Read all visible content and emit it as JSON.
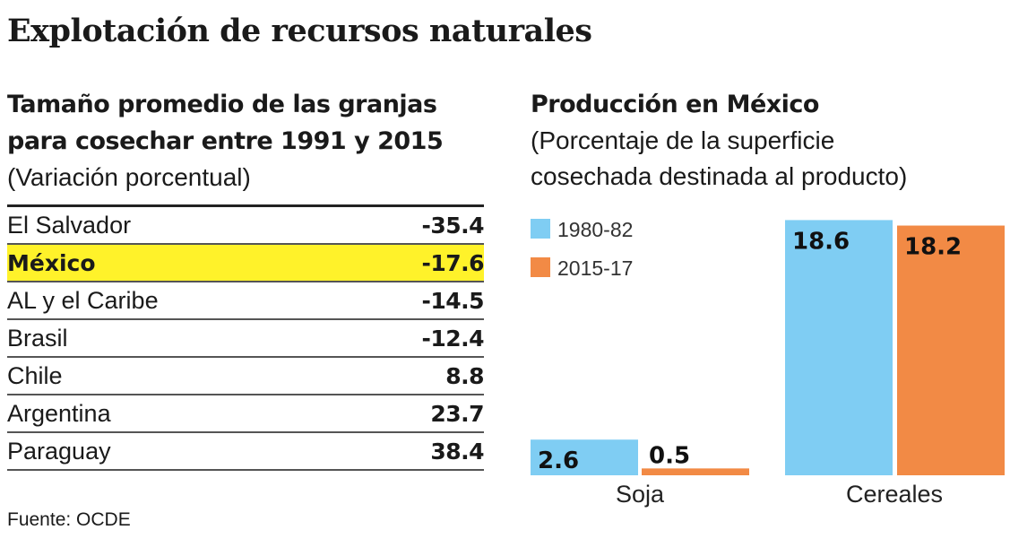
{
  "title": "Explotación de recursos naturales",
  "left": {
    "title_lines": [
      "Tamaño promedio de las granjas",
      "para cosechar entre 1991 y 2015"
    ],
    "subtitle": "(Variación porcentual)",
    "rows": [
      {
        "name": "El Salvador",
        "value": "-35.4",
        "highlight": false
      },
      {
        "name": "México",
        "value": "-17.6",
        "highlight": true
      },
      {
        "name": "AL y el Caribe",
        "value": "-14.5",
        "highlight": false
      },
      {
        "name": "Brasil",
        "value": "-12.4",
        "highlight": false
      },
      {
        "name": "Chile",
        "value": "8.8",
        "highlight": false
      },
      {
        "name": "Argentina",
        "value": "23.7",
        "highlight": false
      },
      {
        "name": "Paraguay",
        "value": "38.4",
        "highlight": false
      }
    ],
    "highlight_color": "#fff22a"
  },
  "source": "Fuente: OCDE",
  "chart_data": {
    "type": "bar",
    "title": "Producción en México",
    "subtitle_lines": [
      "(Porcentaje de la superficie",
      "cosechada destinada al producto)"
    ],
    "categories": [
      "Soja",
      "Cereales"
    ],
    "series": [
      {
        "name": "1980-82",
        "values": [
          2.6,
          18.6
        ],
        "labels": [
          "2.6",
          "18.6"
        ],
        "color": "#7fcdf3"
      },
      {
        "name": "2015-17",
        "values": [
          0.5,
          18.2
        ],
        "labels": [
          "0.5",
          "18.2"
        ],
        "color": "#f28a45"
      }
    ],
    "legend": "top-left",
    "grid": false
  }
}
